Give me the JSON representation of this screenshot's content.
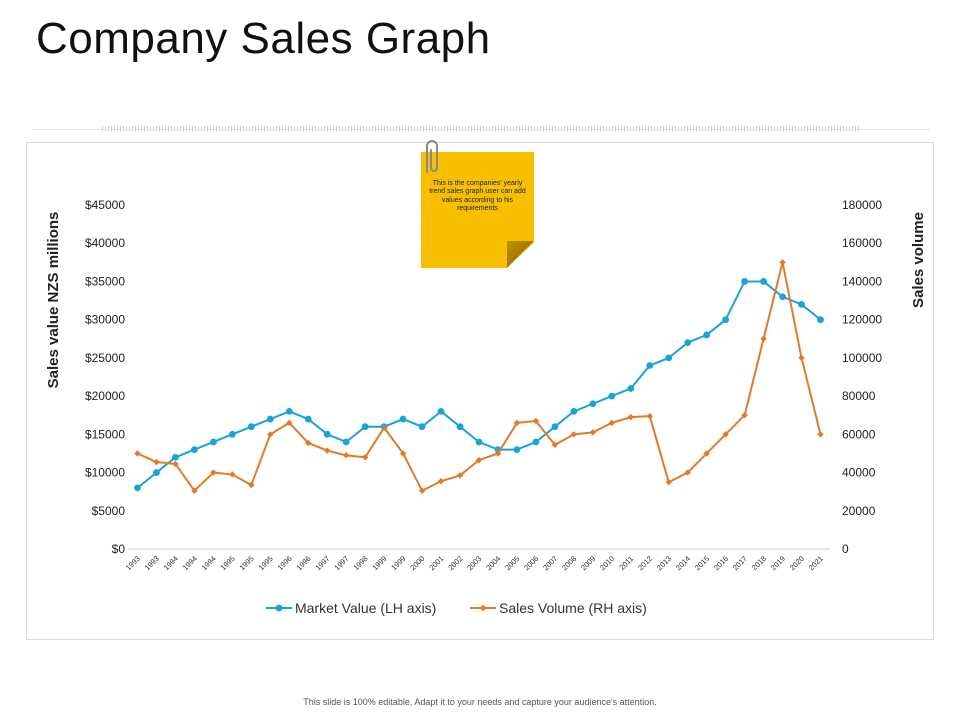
{
  "page": {
    "title": "Company Sales Graph",
    "footer": "This slide is 100% editable. Adapt it to your needs and capture your audience's attention."
  },
  "note": {
    "text": "This is the companies' yearly trend sales graph user can add values according to his requirements",
    "icon": "paperclip-icon",
    "color": "#f7bf00"
  },
  "chart_data": {
    "type": "line",
    "title": "",
    "categories": [
      "1993",
      "1993",
      "1994",
      "1994",
      "1994",
      "1995",
      "1995",
      "1995",
      "1996",
      "1996",
      "1997",
      "1997",
      "1998",
      "1999",
      "1999",
      "2000",
      "2001",
      "2002",
      "2003",
      "2004",
      "2005",
      "2006",
      "2007",
      "2008",
      "2009",
      "2010",
      "2011",
      "2012",
      "2013",
      "2014",
      "2015",
      "2016",
      "2017",
      "2018",
      "2019",
      "2020",
      "2021"
    ],
    "ylabel": "Sales value NZS millions",
    "y2label": "Sales  volume",
    "ylim": [
      0,
      45000
    ],
    "y2lim": [
      0,
      180000
    ],
    "yticks": [
      "$0",
      "$5000",
      "$10000",
      "$15000",
      "$20000",
      "$25000",
      "$30000",
      "$35000",
      "$40000",
      "$45000"
    ],
    "y2ticks": [
      "0",
      "20000",
      "40000",
      "60000",
      "80000",
      "100000",
      "120000",
      "140000",
      "160000",
      "180000"
    ],
    "legend_position": "bottom",
    "series": [
      {
        "name": "Market Value (LH axis)",
        "axis": "left",
        "color": "#1aa3d6",
        "marker": "circle",
        "values": [
          8000,
          10000,
          12000,
          13000,
          14000,
          15000,
          16000,
          17000,
          18000,
          17000,
          15000,
          14000,
          16000,
          16000,
          17000,
          16000,
          18000,
          16000,
          14000,
          13000,
          13000,
          14000,
          16000,
          18000,
          19000,
          20000,
          21000,
          24000,
          25000,
          27000,
          28000,
          30000,
          35000,
          35000,
          33000,
          32000,
          30000
        ]
      },
      {
        "name": "Sales Volume (RH axis)",
        "axis": "right",
        "color": "#e07b2a",
        "marker": "diamond",
        "values": [
          50000,
          45500,
          44500,
          30500,
          40000,
          39000,
          33500,
          60000,
          66000,
          55500,
          51500,
          49000,
          48000,
          63500,
          50000,
          30500,
          35500,
          38500,
          46500,
          50000,
          66000,
          67000,
          54500,
          60000,
          61000,
          66000,
          69000,
          69500,
          35000,
          40000,
          50000,
          60000,
          70000,
          110000,
          150000,
          100000,
          60000
        ]
      }
    ]
  }
}
